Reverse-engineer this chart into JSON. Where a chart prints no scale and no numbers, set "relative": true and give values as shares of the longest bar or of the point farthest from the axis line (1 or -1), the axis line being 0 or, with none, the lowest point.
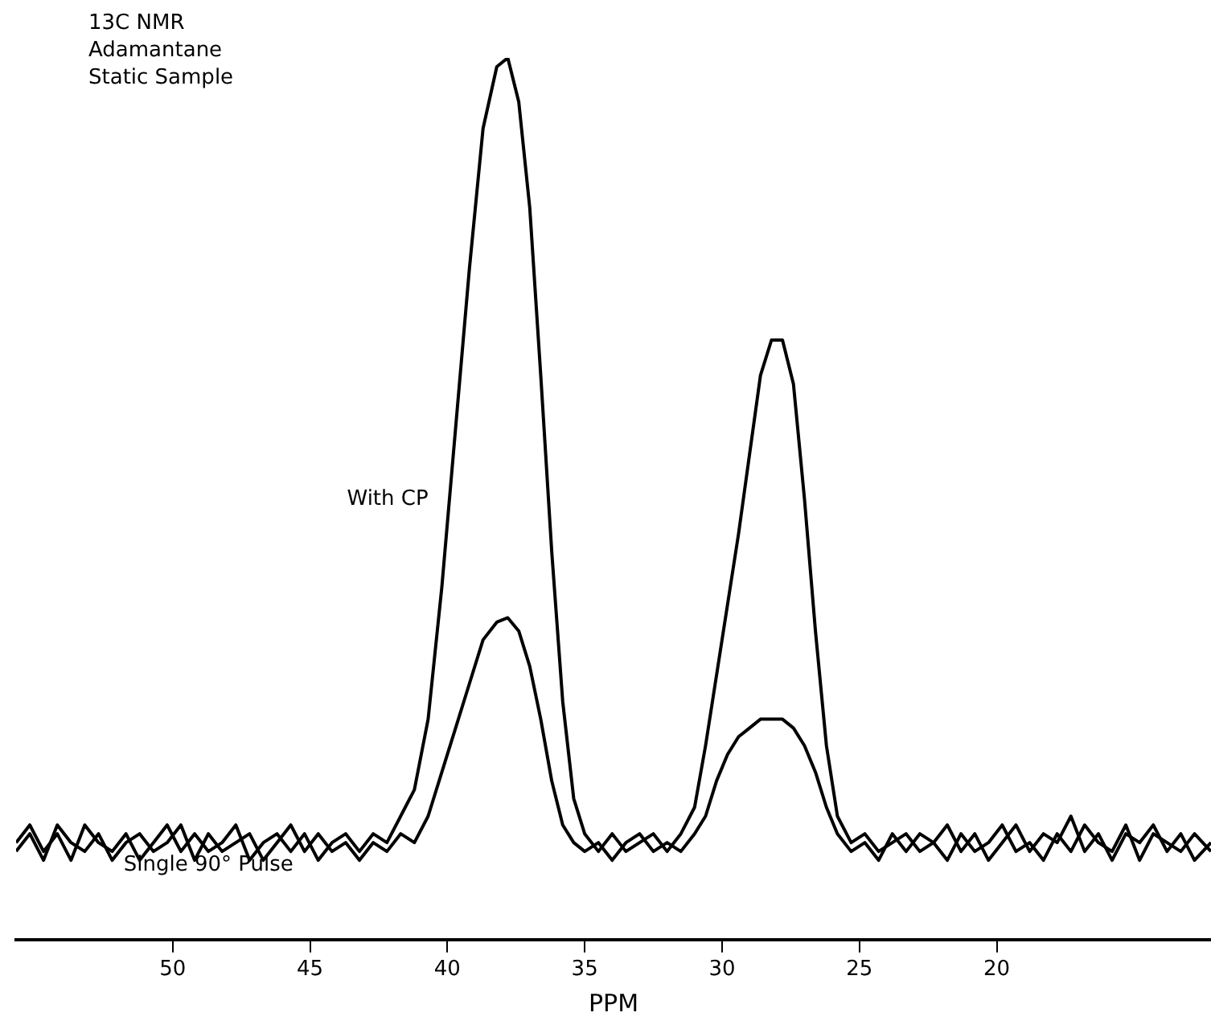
{
  "chart_data": {
    "type": "line",
    "relative": true,
    "xlabel": "PPM",
    "annotations": [
      "13C NMR",
      "Adamantane",
      "Static Sample"
    ],
    "x": [
      55.7,
      55.2,
      54.7,
      54.2,
      53.7,
      53.2,
      52.7,
      52.2,
      51.7,
      51.2,
      50.7,
      50.2,
      49.7,
      49.2,
      48.7,
      48.2,
      47.7,
      47.2,
      46.7,
      46.2,
      45.7,
      45.2,
      44.7,
      44.2,
      43.7,
      43.2,
      42.7,
      42.2,
      41.7,
      41.2,
      40.7,
      40.2,
      39.7,
      39.2,
      38.7,
      38.2,
      37.8,
      37.4,
      37.0,
      36.6,
      36.2,
      35.8,
      35.4,
      35.0,
      34.5,
      34.0,
      33.5,
      33.0,
      32.5,
      32.0,
      31.5,
      31.0,
      30.6,
      30.2,
      29.8,
      29.4,
      29.0,
      28.6,
      28.2,
      27.8,
      27.4,
      27.0,
      26.6,
      26.2,
      25.8,
      25.3,
      24.8,
      24.3,
      23.8,
      23.3,
      22.8,
      22.3,
      21.8,
      21.3,
      20.8,
      20.3,
      19.8,
      19.3,
      18.8,
      18.3,
      17.8,
      17.3,
      16.8,
      16.3,
      15.8,
      15.3,
      14.8,
      14.3,
      13.8,
      13.3,
      12.8,
      12.2
    ],
    "xlim": [
      55.7,
      12.2
    ],
    "xticks": [
      50,
      45,
      40,
      35,
      30,
      25,
      20
    ],
    "grid": false,
    "legend": false,
    "marker": "none",
    "line_style": "solid",
    "series": [
      {
        "name": "With CP",
        "color": "#000000",
        "values": [
          0.11,
          0.13,
          0.1,
          0.12,
          0.09,
          0.13,
          0.11,
          0.1,
          0.12,
          0.09,
          0.11,
          0.13,
          0.1,
          0.12,
          0.1,
          0.11,
          0.13,
          0.09,
          0.11,
          0.12,
          0.1,
          0.12,
          0.09,
          0.11,
          0.12,
          0.1,
          0.12,
          0.11,
          0.14,
          0.17,
          0.25,
          0.4,
          0.58,
          0.76,
          0.92,
          0.99,
          1.0,
          0.95,
          0.83,
          0.64,
          0.44,
          0.27,
          0.16,
          0.12,
          0.1,
          0.12,
          0.1,
          0.11,
          0.12,
          0.1,
          0.12,
          0.15,
          0.22,
          0.3,
          0.38,
          0.46,
          0.55,
          0.64,
          0.68,
          0.68,
          0.63,
          0.5,
          0.35,
          0.22,
          0.14,
          0.11,
          0.12,
          0.1,
          0.11,
          0.12,
          0.1,
          0.11,
          0.13,
          0.1,
          0.12,
          0.09,
          0.11,
          0.13,
          0.1,
          0.12,
          0.11,
          0.14,
          0.1,
          0.12,
          0.09,
          0.12,
          0.11,
          0.13,
          0.1,
          0.12,
          0.09,
          0.11
        ]
      },
      {
        "name": "Single 90° Pulse",
        "color": "#000000",
        "values": [
          0.1,
          0.12,
          0.09,
          0.13,
          0.11,
          0.1,
          0.12,
          0.09,
          0.11,
          0.12,
          0.1,
          0.11,
          0.13,
          0.09,
          0.12,
          0.1,
          0.11,
          0.12,
          0.09,
          0.11,
          0.13,
          0.1,
          0.12,
          0.1,
          0.11,
          0.09,
          0.11,
          0.1,
          0.12,
          0.11,
          0.14,
          0.19,
          0.24,
          0.29,
          0.34,
          0.36,
          0.365,
          0.35,
          0.31,
          0.25,
          0.18,
          0.13,
          0.11,
          0.1,
          0.11,
          0.09,
          0.11,
          0.12,
          0.1,
          0.11,
          0.1,
          0.12,
          0.14,
          0.18,
          0.21,
          0.23,
          0.24,
          0.25,
          0.25,
          0.25,
          0.24,
          0.22,
          0.19,
          0.15,
          0.12,
          0.1,
          0.11,
          0.09,
          0.12,
          0.1,
          0.12,
          0.11,
          0.09,
          0.12,
          0.1,
          0.11,
          0.13,
          0.1,
          0.11,
          0.09,
          0.12,
          0.1,
          0.13,
          0.11,
          0.1,
          0.13,
          0.09,
          0.12,
          0.11,
          0.1,
          0.12,
          0.1
        ]
      }
    ]
  }
}
